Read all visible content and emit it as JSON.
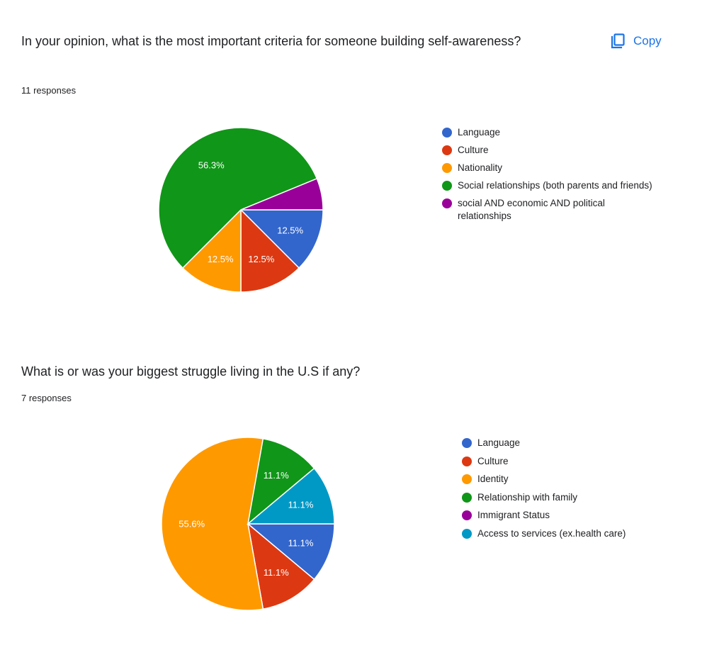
{
  "copy_button": {
    "label": "Copy",
    "icon": "copy-icon",
    "color": "#1a73e8"
  },
  "questions": [
    {
      "title": "In your opinion, what is the most important criteria for someone building self-awareness?",
      "responses": "11 responses"
    },
    {
      "title": "What is or was your biggest struggle living in the U.S if any?",
      "responses": "7 responses"
    }
  ],
  "chart_data": [
    {
      "type": "pie",
      "categories": [
        "Language",
        "Culture",
        "Nationality",
        "Social relationships (both parents and friends)",
        "social AND economic AND political relationships"
      ],
      "values": [
        12.5,
        12.5,
        12.5,
        56.3,
        6.2
      ],
      "data_labels": [
        "12.5%",
        "12.5%",
        "12.5%",
        "56.3%",
        ""
      ],
      "colors": [
        "#3366cc",
        "#dc3912",
        "#ff9900",
        "#109618",
        "#990099"
      ],
      "legend_position": "right"
    },
    {
      "type": "pie",
      "categories": [
        "Language",
        "Culture",
        "Identity",
        "Relationship with family",
        "Immigrant Status",
        "Access to services (ex.health care)"
      ],
      "values": [
        11.1,
        11.1,
        55.6,
        11.1,
        0,
        11.1
      ],
      "data_labels": [
        "11.1%",
        "11.1%",
        "55.6%",
        "11.1%",
        "",
        "11.1%"
      ],
      "colors": [
        "#3366cc",
        "#dc3912",
        "#ff9900",
        "#109618",
        "#990099",
        "#0099c6"
      ],
      "legend_position": "right"
    }
  ]
}
